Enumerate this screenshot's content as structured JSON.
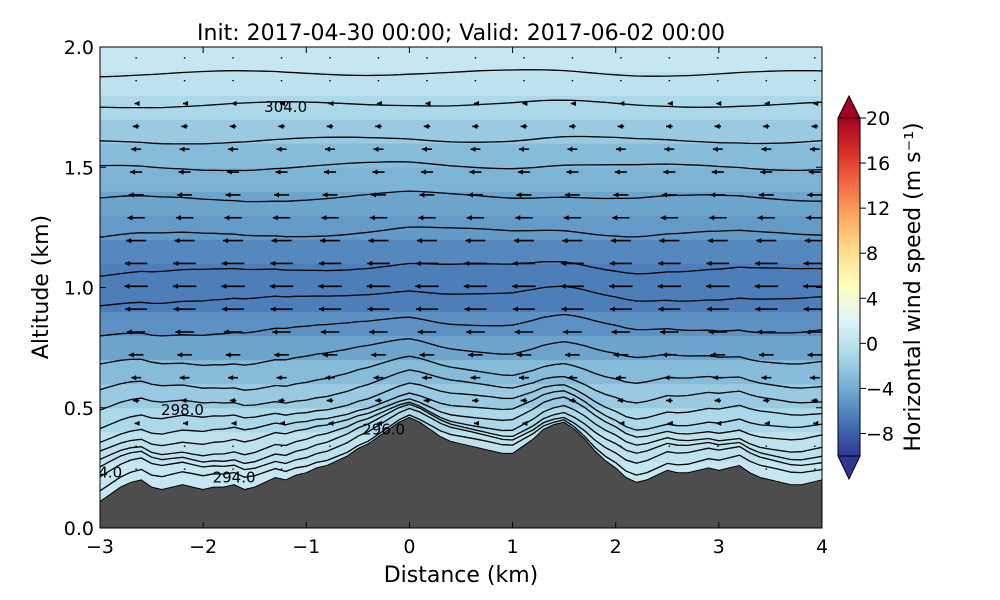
{
  "chart_data": {
    "type": "heatmap",
    "title": "Init: 2017-04-30 00:00; Valid: 2017-06-02 00:00",
    "xlabel": "Distance (km)",
    "ylabel": "Altitude (km)",
    "xlim": [
      -3,
      4
    ],
    "ylim": [
      0.0,
      2.0
    ],
    "x_ticks": [
      -3,
      -2,
      -1,
      0,
      1,
      2,
      3,
      4
    ],
    "x_tick_labels": [
      "−3",
      "−2",
      "−1",
      "0",
      "1",
      "2",
      "3",
      "4"
    ],
    "y_ticks": [
      0.0,
      0.5,
      1.0,
      1.5,
      2.0
    ],
    "y_tick_labels": [
      "0.0",
      "0.5",
      "1.0",
      "1.5",
      "2.0"
    ],
    "colorbar": {
      "label": "Horizontal wind speed (m s⁻¹)",
      "range": [
        -10,
        20
      ],
      "ticks": [
        -8,
        -4,
        0,
        4,
        8,
        12,
        16,
        20
      ],
      "tick_labels": [
        "−8",
        "−4",
        "0",
        "4",
        "8",
        "12",
        "16",
        "20"
      ],
      "extend": "both",
      "colormap": "RdYlBu_r",
      "colors": [
        "#313695",
        "#4575b4",
        "#74add1",
        "#abd9e9",
        "#e0f3f8",
        "#ffffbf",
        "#fee090",
        "#fdae61",
        "#f46d43",
        "#d73027",
        "#a50026"
      ]
    },
    "wind_speed_profile": {
      "altitude_km": [
        0.2,
        0.35,
        0.45,
        0.55,
        0.65,
        0.75,
        0.85,
        0.95,
        1.05,
        1.15,
        1.25,
        1.35,
        1.45,
        1.55,
        1.65,
        1.75,
        1.85,
        1.95
      ],
      "speed_m_s": [
        0.5,
        0.0,
        -1.0,
        -2.0,
        -3.0,
        -4.5,
        -5.5,
        -6.5,
        -6.5,
        -6.0,
        -5.0,
        -4.5,
        -3.5,
        -3.0,
        -2.0,
        -1.0,
        0.0,
        0.5
      ]
    },
    "contour_labels": [
      {
        "text": "304.0",
        "x": -1.2,
        "y": 1.75
      },
      {
        "text": "298.0",
        "x": -2.2,
        "y": 0.49
      },
      {
        "text": "296.0",
        "x": -0.25,
        "y": 0.41
      },
      {
        "text": "294.0",
        "x": -1.7,
        "y": 0.21
      },
      {
        "text": "4.0",
        "x": -2.9,
        "y": 0.23
      }
    ],
    "terrain": {
      "x": [
        -3,
        -2.9,
        -2.8,
        -2.7,
        -2.6,
        -2.5,
        -2.4,
        -2.3,
        -2.2,
        -2.1,
        -2.0,
        -1.9,
        -1.8,
        -1.7,
        -1.6,
        -1.5,
        -1.4,
        -1.3,
        -1.2,
        -1.1,
        -1.0,
        -0.9,
        -0.8,
        -0.7,
        -0.6,
        -0.5,
        -0.4,
        -0.3,
        -0.2,
        -0.1,
        0.0,
        0.1,
        0.2,
        0.3,
        0.4,
        0.5,
        0.6,
        0.7,
        0.8,
        0.9,
        1.0,
        1.1,
        1.2,
        1.3,
        1.4,
        1.5,
        1.6,
        1.7,
        1.8,
        1.9,
        2.0,
        2.1,
        2.2,
        2.3,
        2.4,
        2.5,
        2.6,
        2.7,
        2.8,
        2.9,
        3.0,
        3.1,
        3.2,
        3.3,
        3.4,
        3.5,
        3.6,
        3.7,
        3.8,
        3.9,
        4.0
      ],
      "y": [
        0.11,
        0.14,
        0.17,
        0.19,
        0.2,
        0.17,
        0.16,
        0.17,
        0.18,
        0.17,
        0.16,
        0.17,
        0.17,
        0.18,
        0.16,
        0.17,
        0.19,
        0.21,
        0.2,
        0.22,
        0.23,
        0.25,
        0.26,
        0.28,
        0.3,
        0.33,
        0.35,
        0.38,
        0.41,
        0.44,
        0.46,
        0.44,
        0.41,
        0.38,
        0.36,
        0.35,
        0.34,
        0.33,
        0.32,
        0.31,
        0.31,
        0.34,
        0.37,
        0.41,
        0.43,
        0.44,
        0.41,
        0.37,
        0.32,
        0.28,
        0.25,
        0.21,
        0.19,
        0.2,
        0.22,
        0.24,
        0.23,
        0.23,
        0.24,
        0.25,
        0.24,
        0.25,
        0.26,
        0.23,
        0.21,
        0.2,
        0.19,
        0.18,
        0.18,
        0.19,
        0.2
      ]
    }
  }
}
